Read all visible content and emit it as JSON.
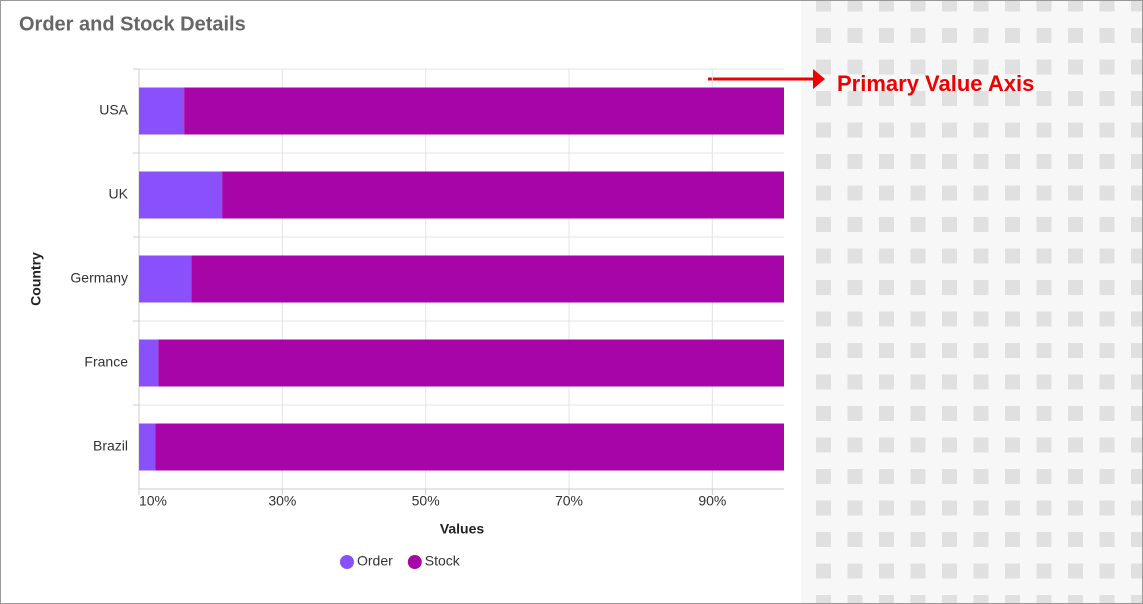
{
  "chart_data": {
    "type": "stacked_bar_horizontal",
    "title": "Order and Stock Details",
    "categories": [
      "USA",
      "UK",
      "Germany",
      "France",
      "Brazil"
    ],
    "series": [
      {
        "name": "Order",
        "color": "#8950fc",
        "values": [
          16.3,
          21.6,
          17.3,
          12.7,
          12.3
        ]
      },
      {
        "name": "Stock",
        "color": "#a705a8",
        "values": [
          83.7,
          78.4,
          82.7,
          87.3,
          87.7
        ]
      }
    ],
    "xlim": [
      10,
      100
    ],
    "xticks": [
      {
        "value": 10,
        "label": "10%"
      },
      {
        "value": 30,
        "label": "30%"
      },
      {
        "value": 50,
        "label": "50%"
      },
      {
        "value": 70,
        "label": "70%"
      },
      {
        "value": 90,
        "label": "90%"
      }
    ],
    "x_label": "Values",
    "y_label": "Country",
    "grid": true,
    "annotation": "Primary Value Axis"
  }
}
